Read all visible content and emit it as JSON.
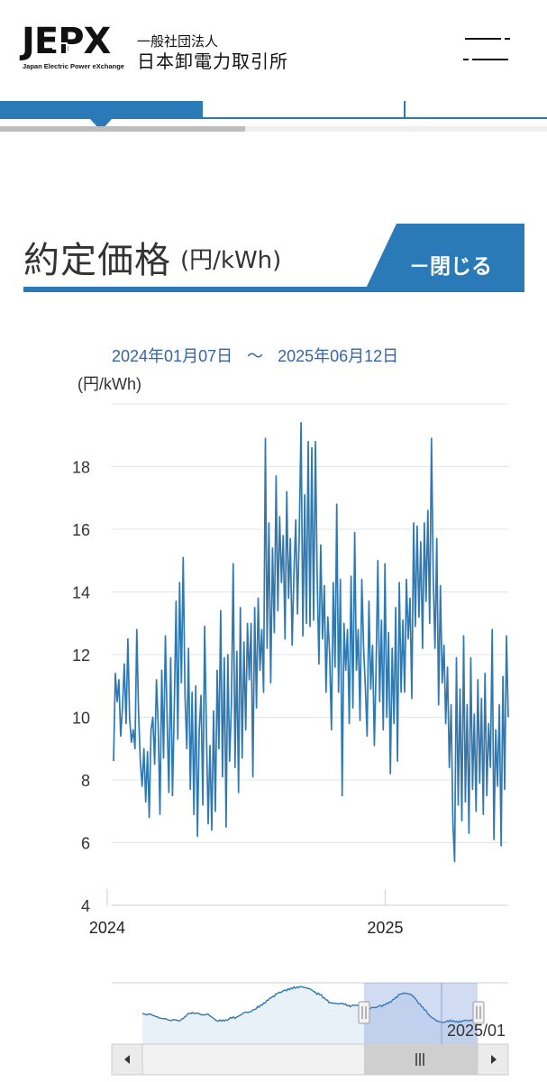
{
  "header": {
    "logo_text": "JEPX",
    "logo_sub": "Japan Electric Power eXchange",
    "org_small": "一般社団法人",
    "org_big": "日本卸電力取引所"
  },
  "section": {
    "title": "約定価格",
    "unit": "(円/kWh)",
    "close_label": "－閉じる"
  },
  "date_range": {
    "start": "2024年01月07日",
    "separator": "～",
    "end": "2025年06月12日"
  },
  "colors": {
    "accent": "#2a7ab8",
    "line": "#2f79b0",
    "date_text": "#3566a3"
  },
  "navigator": {
    "label": "2025/01",
    "left_arrow": "left-arrow-icon",
    "right_arrow": "right-arrow-icon",
    "thumb_icon": "grip-icon"
  },
  "chart_data": {
    "type": "line",
    "ylabel": "(円/kWh)",
    "ylim": [
      4,
      20
    ],
    "yticks": [
      4,
      6,
      8,
      10,
      12,
      14,
      16,
      18
    ],
    "xticks": [
      "2024",
      "2025"
    ],
    "x_range": [
      "2024-01-07",
      "2025-06-12"
    ],
    "grid": true,
    "series": [
      {
        "values": [
          8.6,
          11.4,
          10.5,
          11.2,
          9.4,
          10.3,
          11.7,
          9.8,
          12.5,
          10.0,
          9.2,
          9.6,
          9.0,
          12.8,
          10.2,
          8.6,
          7.8,
          9.0,
          7.3,
          8.9,
          6.8,
          9.6,
          10.0,
          8.5,
          11.2,
          9.8,
          6.9,
          11.5,
          8.7,
          12.6,
          9.9,
          7.6,
          11.9,
          7.5,
          10.3,
          13.7,
          9.3,
          14.3,
          11.1,
          15.1,
          10.7,
          9.0,
          12.2,
          7.7,
          10.8,
          6.9,
          11.0,
          6.2,
          9.6,
          10.7,
          7.2,
          12.9,
          9.5,
          6.6,
          9.1,
          6.4,
          10.2,
          7.0,
          11.5,
          9.0,
          13.4,
          8.1,
          11.9,
          6.5,
          12.0,
          8.6,
          10.4,
          14.9,
          8.4,
          12.1,
          7.6,
          13.5,
          8.7,
          12.4,
          9.6,
          13.0,
          11.2,
          13.0,
          8.1,
          13.5,
          10.3,
          13.8,
          11.5,
          12.8,
          10.8,
          18.9,
          12.2,
          16.2,
          11.1,
          15.4,
          12.7,
          17.7,
          13.4,
          16.4,
          14.3,
          15.8,
          12.5,
          17.2,
          13.8,
          15.7,
          12.3,
          14.6,
          16.3,
          13.3,
          15.9,
          19.4,
          12.6,
          17.1,
          13.0,
          18.8,
          12.9,
          18.6,
          13.1,
          18.8,
          14.6,
          11.7,
          15.5,
          12.5,
          14.2,
          10.8,
          13.2,
          12.0,
          9.6,
          14.3,
          11.6,
          16.8,
          10.8,
          14.4,
          7.5,
          13.0,
          11.5,
          12.8,
          9.8,
          14.5,
          10.3,
          15.9,
          11.5,
          12.8,
          9.9,
          14.4,
          12.2,
          11.0,
          9.4,
          13.7,
          10.9,
          12.3,
          9.1,
          11.5,
          15.0,
          10.5,
          13.1,
          9.6,
          14.9,
          10.0,
          12.7,
          8.2,
          12.2,
          9.8,
          13.5,
          8.6,
          14.3,
          10.8,
          13.1,
          10.8,
          14.4,
          12.5,
          13.8,
          10.6,
          16.2,
          12.9,
          16.1,
          13.2,
          15.6,
          12.2,
          16.2,
          13.7,
          16.6,
          13.0,
          18.9,
          14.4,
          12.2,
          15.7,
          10.4,
          14.2,
          11.1,
          12.3,
          9.8,
          11.6,
          8.4,
          10.4,
          6.6,
          5.4,
          11.9,
          7.2,
          10.9,
          6.7,
          12.6,
          7.3,
          10.4,
          6.3,
          11.9,
          7.7,
          10.1,
          7.0,
          11.2,
          7.9,
          10.6,
          6.9,
          11.4,
          7.5,
          9.8,
          8.4,
          12.8,
          6.1,
          9.6,
          7.8,
          10.4,
          5.9,
          11.3,
          7.7,
          12.6,
          10.0
        ]
      }
    ]
  }
}
